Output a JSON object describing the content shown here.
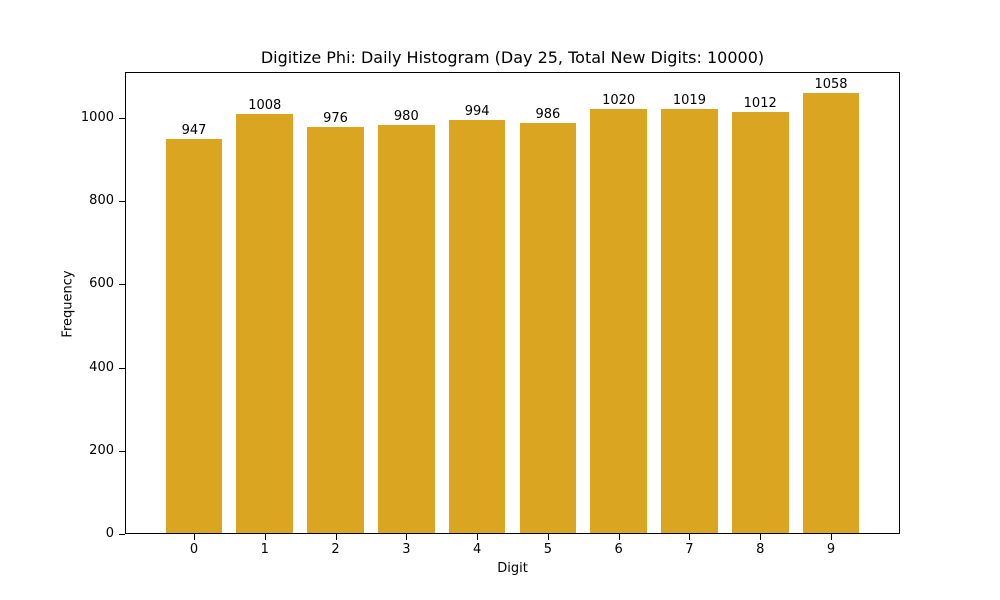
{
  "chart_data": {
    "type": "bar",
    "title": "Digitize Phi: Daily Histogram (Day 25, Total New Digits: 10000)",
    "xlabel": "Digit",
    "ylabel": "Frequency",
    "categories": [
      "0",
      "1",
      "2",
      "3",
      "4",
      "5",
      "6",
      "7",
      "8",
      "9"
    ],
    "values": [
      947,
      1008,
      976,
      980,
      994,
      986,
      1020,
      1019,
      1012,
      1058
    ],
    "yticks": [
      "0",
      "200",
      "400",
      "600",
      "800",
      "1000"
    ],
    "ylim": [
      0,
      1111
    ],
    "grid": false,
    "bar_color": "#DAA520"
  }
}
